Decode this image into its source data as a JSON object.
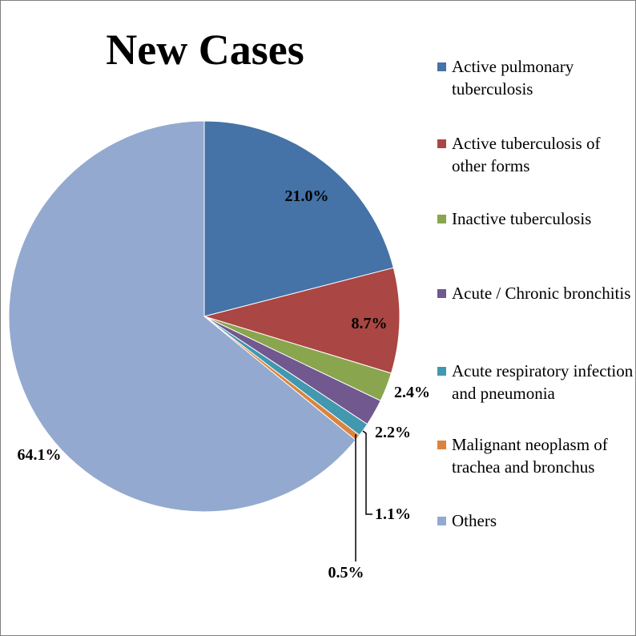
{
  "chart_data": {
    "type": "pie",
    "title": "New Cases",
    "legend_position": "right",
    "slices": [
      {
        "label": "Active pulmonary tuberculosis",
        "value": 21.0,
        "display": "21.0%",
        "color": "#4572A7"
      },
      {
        "label": "Active tuberculosis of other forms",
        "value": 8.7,
        "display": "8.7%",
        "color": "#AA4643"
      },
      {
        "label": "Inactive tuberculosis",
        "value": 2.4,
        "display": "2.4%",
        "color": "#89A54E"
      },
      {
        "label": "Acute / Chronic bronchitis",
        "value": 2.2,
        "display": "2.2%",
        "color": "#71588F"
      },
      {
        "label": "Acute respiratory infection and pneumonia",
        "value": 1.1,
        "display": "1.1%",
        "color": "#4198AF"
      },
      {
        "label": "Malignant neoplasm of trachea and bronchus",
        "value": 0.5,
        "display": "0.5%",
        "color": "#DB843D"
      },
      {
        "label": "Others",
        "value": 64.1,
        "display": "64.1%",
        "color": "#93A9CF"
      }
    ]
  }
}
